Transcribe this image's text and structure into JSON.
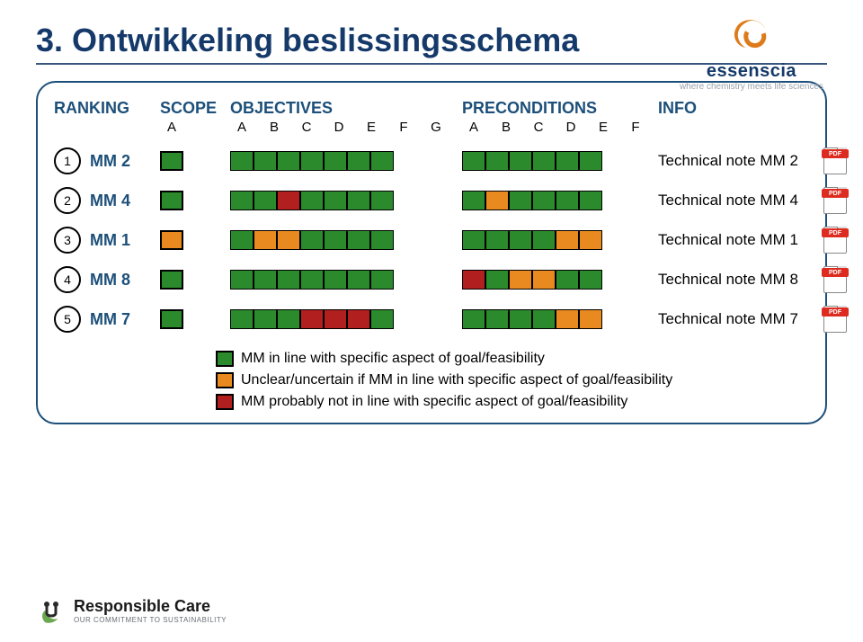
{
  "title": "3. Ontwikkeling beslissingsschema",
  "brand": {
    "name": "essenscia",
    "tagline": "where chemistry meets life sciences"
  },
  "footer_logo": {
    "line1": "Responsible Care",
    "line2": "OUR COMMITMENT TO SUSTAINABILITY"
  },
  "colors": {
    "green": "#2b8a2b",
    "orange": "#e88a1f",
    "red": "#b11f1f",
    "header": "#1c4f7a",
    "title": "#153a6a",
    "border": "#1c4f7a",
    "dash": "#7b99a8"
  },
  "columns": {
    "ranking": "RANKING",
    "scope": "SCOPE",
    "objectives": "OBJECTIVES",
    "preconditions": "PRECONDITIONS",
    "info": "INFO"
  },
  "sub_letters": {
    "scope": [
      "A"
    ],
    "objectives": [
      "A",
      "B",
      "C",
      "D",
      "E",
      "F",
      "G"
    ],
    "preconditions": [
      "A",
      "B",
      "C",
      "D",
      "E",
      "F"
    ]
  },
  "rows": [
    {
      "rank": "1",
      "mm": "MM 2",
      "scope": [
        "green"
      ],
      "objectives": [
        "green",
        "green",
        "green",
        "green",
        "green",
        "green",
        "green"
      ],
      "preconditions": [
        "green",
        "green",
        "green",
        "green",
        "green",
        "green"
      ],
      "info": "Technical note MM 2"
    },
    {
      "rank": "2",
      "mm": "MM 4",
      "scope": [
        "green"
      ],
      "objectives": [
        "green",
        "green",
        "red",
        "green",
        "green",
        "green",
        "green"
      ],
      "preconditions": [
        "green",
        "orange",
        "green",
        "green",
        "green",
        "green"
      ],
      "info": "Technical note MM 4"
    },
    {
      "rank": "3",
      "mm": "MM 1",
      "scope": [
        "orange"
      ],
      "objectives": [
        "green",
        "orange",
        "orange",
        "green",
        "green",
        "green",
        "green"
      ],
      "preconditions": [
        "green",
        "green",
        "green",
        "green",
        "orange",
        "orange"
      ],
      "info": "Technical note MM 1"
    },
    {
      "rank": "4",
      "mm": "MM 8",
      "scope": [
        "green"
      ],
      "objectives": [
        "green",
        "green",
        "green",
        "green",
        "green",
        "green",
        "green"
      ],
      "preconditions": [
        "red",
        "green",
        "orange",
        "orange",
        "green",
        "green"
      ],
      "info": "Technical note MM 8"
    },
    {
      "rank": "5",
      "mm": "MM 7",
      "scope": [
        "green"
      ],
      "objectives": [
        "green",
        "green",
        "green",
        "red",
        "red",
        "red",
        "green"
      ],
      "preconditions": [
        "green",
        "green",
        "green",
        "green",
        "orange",
        "orange"
      ],
      "info": "Technical note MM 7"
    }
  ],
  "legend": [
    {
      "color": "green",
      "text": "MM in line with specific aspect of goal/feasibility"
    },
    {
      "color": "orange",
      "text": "Unclear/uncertain if MM in line with specific aspect of goal/feasibility"
    },
    {
      "color": "red",
      "text": "MM probably not in line with specific aspect of goal/feasibility"
    }
  ],
  "pdf_badge": "PDF"
}
